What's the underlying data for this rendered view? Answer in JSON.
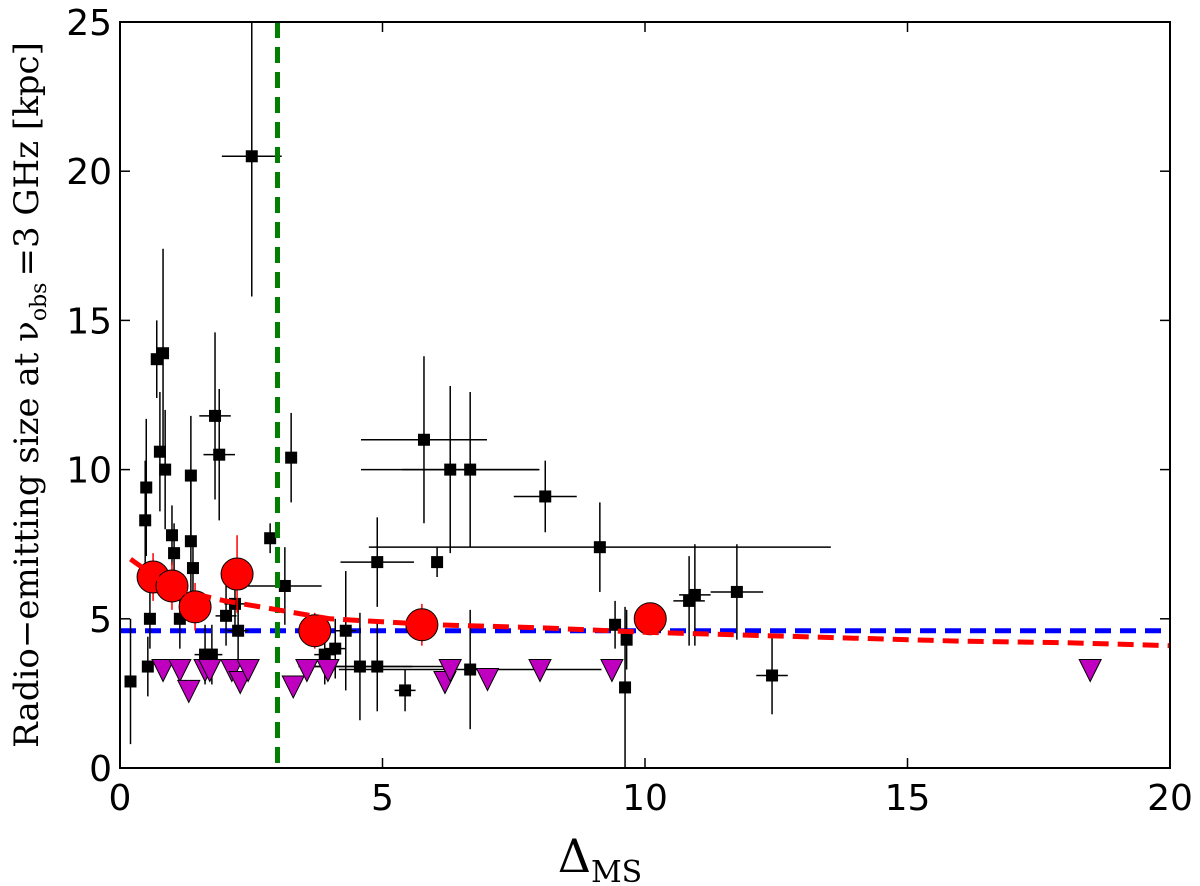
{
  "chart_data": {
    "type": "scatter",
    "ylabel": [
      "Radio−emitting size at ν",
      "obs",
      "=3 GHz [kpc]"
    ],
    "xlabel": [
      "Δ",
      "MS"
    ],
    "xlim": [
      0,
      20
    ],
    "ylim": [
      0,
      25
    ],
    "xticks": [
      0,
      5,
      10,
      15,
      20
    ],
    "yticks": [
      0,
      5,
      10,
      15,
      20,
      25
    ],
    "vlines": [
      {
        "x": 3,
        "color": "#007f00"
      }
    ],
    "hlines": [
      {
        "y": 4.6,
        "color": "#0000ff"
      }
    ],
    "series": [
      {
        "marker": "square",
        "color": "#000000",
        "x": [
          2.51,
          0.2,
          0.5,
          0.48,
          0.7,
          0.82,
          0.76,
          0.86,
          0.99,
          1.03,
          1.35,
          1.35,
          1.39,
          1.81,
          1.89,
          2.86,
          3.26,
          3.14,
          5.79,
          6.29,
          6.67,
          8.1,
          4.9,
          6.04,
          9.14,
          10.84,
          10.95,
          11.75,
          12.42,
          5.43,
          9.62,
          9.65,
          9.43,
          6.67,
          4.3,
          4.57,
          4.9,
          4.1,
          3.9,
          0.57,
          0.53,
          1.14,
          1.62,
          1.75,
          2.25,
          2.19,
          2.02
        ],
        "values": [
          20.5,
          2.9,
          9.4,
          8.3,
          13.7,
          13.9,
          10.6,
          10.0,
          7.8,
          7.2,
          9.8,
          7.6,
          6.7,
          11.8,
          10.5,
          7.7,
          10.4,
          6.1,
          11.0,
          10.0,
          10.0,
          9.1,
          6.9,
          6.9,
          7.4,
          5.6,
          5.8,
          5.9,
          3.1,
          2.6,
          2.7,
          4.3,
          4.8,
          3.3,
          4.6,
          3.4,
          3.4,
          4.0,
          3.8,
          5.0,
          3.4,
          5.0,
          3.8,
          3.8,
          4.6,
          5.5,
          5.1
        ],
        "xerr": [
          0.57,
          0.1,
          0.1,
          0.1,
          0.1,
          0.1,
          0.1,
          0.1,
          0.1,
          0.1,
          0.1,
          0.1,
          0.1,
          0.3,
          0.3,
          0.1,
          0.1,
          0.7,
          1.2,
          1.7,
          1.3,
          0.6,
          0.7,
          0.1,
          4.4,
          0.3,
          0.3,
          0.5,
          0.3,
          0.2,
          0.1,
          0.1,
          0.1,
          2.5,
          0.2,
          1.0,
          1.5,
          0.2,
          0.2,
          0.1,
          0.1,
          0.1,
          0.2,
          0.2,
          0.2,
          0.2,
          0.2
        ],
        "yerr": [
          4.7,
          2.1,
          2.3,
          2.0,
          1.3,
          3.5,
          2.0,
          2.0,
          1.0,
          1.0,
          2.0,
          2.0,
          1.0,
          2.8,
          2.2,
          0.5,
          1.5,
          1.3,
          2.8,
          2.8,
          2.6,
          1.2,
          1.5,
          0.5,
          1.5,
          1.5,
          1.7,
          1.6,
          1.3,
          0.7,
          2.7,
          1.0,
          0.8,
          2.0,
          2.0,
          1.8,
          1.5,
          1.0,
          1.0,
          1.0,
          1.0,
          1.0,
          1.0,
          1.0,
          1.0,
          1.0,
          1.0
        ]
      },
      {
        "marker": "circle",
        "color": "#ff0000",
        "x": [
          0.63,
          0.99,
          1.43,
          2.23,
          3.71,
          5.75,
          10.1
        ],
        "values": [
          6.4,
          6.1,
          5.4,
          6.5,
          4.6,
          4.8,
          5.0
        ],
        "yerr": [
          0.8,
          0.8,
          0.8,
          1.3,
          0.6,
          0.7,
          0.4
        ]
      },
      {
        "marker": "triangle",
        "color": "#bf00bf",
        "x": [
          0.82,
          1.14,
          1.31,
          1.62,
          1.71,
          2.13,
          2.29,
          2.44,
          3.3,
          3.56,
          3.96,
          6.19,
          6.29,
          7.0,
          8.0,
          9.37,
          18.48
        ],
        "values": [
          3.3,
          3.3,
          2.6,
          3.3,
          3.3,
          3.3,
          2.9,
          3.3,
          2.75,
          3.3,
          3.3,
          2.9,
          3.3,
          3.0,
          3.3,
          3.3,
          3.3
        ]
      },
      {
        "marker": "line",
        "color": "#ff0000",
        "x": [
          0.2,
          1,
          2,
          3,
          4,
          5,
          6,
          8,
          10,
          12,
          14,
          16,
          18,
          20
        ],
        "values": [
          7.0,
          6.0,
          5.6,
          5.3,
          5.0,
          4.9,
          4.8,
          4.7,
          4.55,
          4.45,
          4.35,
          4.25,
          4.2,
          4.1
        ]
      }
    ]
  }
}
